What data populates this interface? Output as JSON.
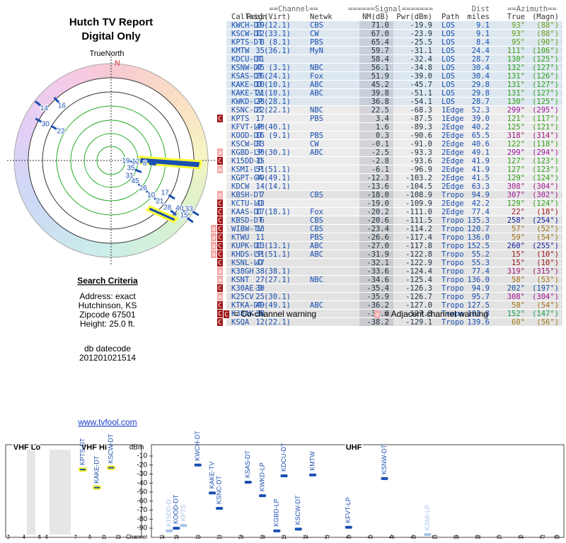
{
  "header": {
    "title": "Hutch TV Report",
    "subtitle": "Digital Only"
  },
  "polar": {
    "north_label": "TrueNorth",
    "north_mark": "N",
    "labels": [
      {
        "label": "14",
        "azimuth": 308
      },
      {
        "label": "16",
        "azimuth": 318
      },
      {
        "label": "30",
        "azimuth": 299
      },
      {
        "label": "22",
        "azimuth": 300
      },
      {
        "label": "19",
        "azimuth": 93
      },
      {
        "label": "12",
        "azimuth": 93
      },
      {
        "label": "8",
        "azimuth": 95
      },
      {
        "label": "35",
        "azimuth": 111
      },
      {
        "label": "31",
        "azimuth": 130
      },
      {
        "label": "45",
        "azimuth": 131
      },
      {
        "label": "26",
        "azimuth": 131
      },
      {
        "label": "10",
        "azimuth": 131
      },
      {
        "label": "21",
        "azimuth": 130
      },
      {
        "label": "17",
        "azimuth": 121
      },
      {
        "label": "28",
        "azimuth": 130
      },
      {
        "label": "40",
        "azimuth": 125
      },
      {
        "label": "33",
        "azimuth": 122
      },
      {
        "label": "15",
        "azimuth": 127
      }
    ]
  },
  "criteria": {
    "title": "Search Criteria",
    "lines": [
      "Address: exact",
      "Hutchinson, KS",
      "Zipcode 67501",
      "Height: 25.0 ft."
    ],
    "datecode_label": "db datecode",
    "datecode": "201201021514"
  },
  "link": "www.tvfool.com",
  "table": {
    "group_headers": [
      "==Channel==",
      "======Signal=======",
      "Dist",
      "==Azimuth=="
    ],
    "columns": [
      "Callsign",
      "Real",
      "(Virt)",
      "Netwk",
      "NM(dB)",
      "Pwr(dBm)",
      "Path",
      "miles",
      "True",
      "(Magn)"
    ],
    "rows": [
      {
        "cells": [
          "KWCH-DT",
          "19",
          "(12.1)",
          "CBS",
          "71.0",
          "-19.9",
          "LOS",
          "9.1",
          "93°",
          "(88°)"
        ]
      },
      {
        "cells": [
          "KSCW-DT",
          "12",
          "(33.1)",
          "CW",
          "67.0",
          "-23.9",
          "LOS",
          "9.1",
          "93°",
          "(88°)"
        ]
      },
      {
        "cells": [
          "KPTS-DT",
          "8",
          "(8.1)",
          "PBS",
          "65.4",
          "-25.5",
          "LOS",
          "8.4",
          "95°",
          "(90°)"
        ]
      },
      {
        "cells": [
          "KMTW",
          "35",
          "(36.1)",
          "MyN",
          "59.7",
          "-31.1",
          "LOS",
          "24.4",
          "111°",
          "(106°)"
        ]
      },
      {
        "cells": [
          "KDCU-DT",
          "31",
          null,
          null,
          "58.4",
          "-32.4",
          "LOS",
          "28.7",
          "130°",
          "(125°)"
        ]
      },
      {
        "cells": [
          "KSNW-DT",
          "45",
          "(3.1)",
          "NBC",
          "56.1",
          "-34.8",
          "LOS",
          "30.4",
          "132°",
          "(127°)"
        ]
      },
      {
        "cells": [
          "KSAS-DT",
          "26",
          "(24.1)",
          "Fox",
          "51.9",
          "-39.0",
          "LOS",
          "30.4",
          "131°",
          "(126°)"
        ]
      },
      {
        "cells": [
          "KAKE-DT",
          "10",
          "(10.1)",
          "ABC",
          "45.2",
          "-45.7",
          "LOS",
          "29.8",
          "131°",
          "(127°)"
        ]
      },
      {
        "cells": [
          "KAKE-TV",
          "21",
          "(10.1)",
          "ABC",
          "39.8",
          "-51.1",
          "LOS",
          "29.8",
          "131°",
          "(127°)"
        ]
      },
      {
        "cells": [
          "KWKD-LP",
          "28",
          "(28.1)",
          null,
          "36.8",
          "-54.1",
          "LOS",
          "28.7",
          "130°",
          "(125°)"
        ]
      },
      {
        "cells": [
          "KSNC-DT",
          "22",
          "(22.1)",
          "NBC",
          "22.5",
          "-68.3",
          "1Edge",
          "52.3",
          "299°",
          "(295°)"
        ]
      },
      {
        "warn": [
          "C"
        ],
        "cells": [
          "KPTS",
          "17",
          null,
          "PBS",
          "3.4",
          "-87.5",
          "1Edge",
          "39.0",
          "121°",
          "(117°)"
        ]
      },
      {
        "cells": [
          "KFVT-LP",
          "40",
          "(40.1)",
          null,
          "1.6",
          "-89.3",
          "2Edge",
          "40.2",
          "125°",
          "(121°)"
        ]
      },
      {
        "cells": [
          "KOOD-DT",
          "16",
          "(9.1)",
          "PBS",
          "0.3",
          "-90.6",
          "2Edge",
          "65.5",
          "318°",
          "(314°)"
        ]
      },
      {
        "cells": [
          "KSCW-DT",
          "33",
          null,
          "CW",
          "-0.1",
          "-91.0",
          "2Edge",
          "40.6",
          "122°",
          "(118°)"
        ]
      },
      {
        "warn": [
          "a"
        ],
        "cells": [
          "KGBD-LP",
          "30",
          "(30.1)",
          "ABC",
          "-2.5",
          "-93.3",
          "2Edge",
          "49.1",
          "299°",
          "(294°)"
        ]
      },
      {
        "warn": [
          "C"
        ],
        "cells": [
          "K15DD-D",
          "15",
          null,
          null,
          "-2.8",
          "-93.6",
          "2Edge",
          "41.9",
          "127°",
          "(123°)"
        ]
      },
      {
        "warn": [
          "a"
        ],
        "cells": [
          "KSMI-LP",
          "51",
          "(51.1)",
          null,
          "-6.1",
          "-96.9",
          "2Edge",
          "41.9",
          "127°",
          "(123°)"
        ]
      },
      {
        "cells": [
          "KGPT-CA",
          "49",
          "(49.1)",
          null,
          "-12.3",
          "-103.2",
          "2Edge",
          "41.5",
          "129°",
          "(124°)"
        ]
      },
      {
        "cells": [
          "KDCW",
          "14",
          "(14.1)",
          null,
          "-13.6",
          "-104.5",
          "2Edge",
          "63.3",
          "308°",
          "(304°)"
        ]
      },
      {
        "warn": [
          "a"
        ],
        "cells": [
          "KBSH-DT",
          "7",
          null,
          "CBS",
          "-18.0",
          "-108.9",
          "Tropo",
          "94.9",
          "307°",
          "(302°)"
        ]
      },
      {
        "warn": [
          "C"
        ],
        "cells": [
          "KCTU-LD",
          "43",
          null,
          null,
          "-19.0",
          "-109.9",
          "2Edge",
          "42.2",
          "129°",
          "(124°)"
        ]
      },
      {
        "warn": [
          "C"
        ],
        "cells": [
          "KAAS-DT",
          "17",
          "(18.1)",
          "Fox",
          "-20.2",
          "-111.0",
          "2Edge",
          "77.4",
          "22°",
          "(18°)"
        ]
      },
      {
        "warn": [
          "C"
        ],
        "cells": [
          "KBSD-DT",
          "6",
          null,
          "CBS",
          "-20.6",
          "-111.5",
          "Tropo",
          "135.3",
          "258°",
          "(254°)"
        ]
      },
      {
        "warn": [
          "a",
          "C"
        ],
        "cells": [
          "WIBW-TV",
          "13",
          null,
          "CBS",
          "-23.4",
          "-114.2",
          "Tropo",
          "120.7",
          "57°",
          "(52°)"
        ]
      },
      {
        "warn": [
          "a",
          "C"
        ],
        "cells": [
          "KTWU",
          "11",
          null,
          "PBS",
          "-26.6",
          "-117.4",
          "Tropo",
          "136.0",
          "59°",
          "(54°)"
        ]
      },
      {
        "warn": [
          "a",
          "C"
        ],
        "cells": [
          "KUPK-DT",
          "13",
          "(13.1)",
          "ABC",
          "-27.0",
          "-117.8",
          "Tropo",
          "152.5",
          "260°",
          "(255°)"
        ]
      },
      {
        "warn": [
          "a",
          "C"
        ],
        "cells": [
          "KHDS-LP",
          "51",
          "(51.1)",
          "ABC",
          "-31.9",
          "-122.8",
          "Tropo",
          "55.2",
          "15°",
          "(10°)"
        ]
      },
      {
        "warn": [
          "C"
        ],
        "cells": [
          "KSNL-LD",
          "47",
          null,
          null,
          "-32.1",
          "-122.9",
          "Tropo",
          "55.3",
          "15°",
          "(10°)"
        ]
      },
      {
        "warn": [
          "a"
        ],
        "cells": [
          "K38GH",
          "38",
          "(38.1)",
          null,
          "-33.6",
          "-124.4",
          "Tropo",
          "77.4",
          "319°",
          "(315°)"
        ]
      },
      {
        "warn": [
          "a"
        ],
        "cells": [
          "KSNT",
          "27",
          "(27.1)",
          "NBC",
          "-34.6",
          "-125.4",
          "Tropo",
          "136.0",
          "58°",
          "(53°)"
        ]
      },
      {
        "warn": [
          "C"
        ],
        "cells": [
          "K30AE-D",
          "30",
          null,
          null,
          "-35.4",
          "-126.3",
          "Tropo",
          "94.9",
          "202°",
          "(197°)"
        ]
      },
      {
        "warn": [
          "a"
        ],
        "cells": [
          "K25CV",
          "25",
          "(30.1)",
          null,
          "-35.9",
          "-126.7",
          "Tropo",
          "95.7",
          "308°",
          "(304°)"
        ]
      },
      {
        "warn": [
          "C"
        ],
        "cells": [
          "KTKA-DT",
          "49",
          "(49.1)",
          "ABC",
          "-36.2",
          "-127.0",
          "Tropo",
          "127.5",
          "58°",
          "(54°)"
        ]
      },
      {
        "warn": [
          "C"
        ],
        "cells": [
          "K38AK-D",
          "38",
          null,
          null,
          "-37.0",
          "-127.8",
          "Tropo",
          "103.8",
          "152°",
          "(147°)"
        ]
      },
      {
        "warn": [
          "C"
        ],
        "cells": [
          "KSQA",
          "12",
          "(22.1)",
          null,
          "-38.2",
          "-129.1",
          "Tropo",
          "139.6",
          "60°",
          "(56°)"
        ]
      }
    ]
  },
  "legend": [
    {
      "icon": "C",
      "text": "= Co-channel warning"
    },
    {
      "icon": "a",
      "text": "= Adjacent channel warning"
    }
  ],
  "spectrum": {
    "bands": [
      "VHF Lo",
      "VHF Hi",
      "UHF"
    ],
    "y_label": "dBm",
    "x_label": "Channel",
    "ylim": [
      -3,
      -97
    ],
    "yticks": [
      -10,
      -20,
      -30,
      -40,
      -50,
      -60,
      -70,
      -80,
      -90
    ],
    "vhf_ticks": [
      2,
      4,
      5,
      6,
      7,
      9,
      11,
      13
    ],
    "uhf_xlim": [
      14,
      69
    ],
    "uhf_ticks": [
      14,
      16,
      19,
      22,
      25,
      28,
      31,
      34,
      37,
      40,
      43,
      46,
      49,
      52,
      55,
      58,
      61,
      64,
      67,
      69
    ],
    "stations": [
      {
        "name": "KPTS-DT",
        "channel": 8,
        "dbm": -25,
        "active": true
      },
      {
        "name": "KAKE-DT",
        "channel": 10,
        "dbm": -45,
        "active": true
      },
      {
        "name": "KSCW-DT",
        "channel": 12,
        "dbm": -23,
        "active": true
      },
      {
        "name": "K15DD-D",
        "channel": 15,
        "dbm": -93,
        "active": false
      },
      {
        "name": "KOOD-DT",
        "channel": 16,
        "dbm": -90,
        "active": true
      },
      {
        "name": "KPTS",
        "channel": 17,
        "dbm": -87,
        "active": false
      },
      {
        "name": "KWCH-DT",
        "channel": 19,
        "dbm": -20,
        "active": true
      },
      {
        "name": "KAKE-TV",
        "channel": 21,
        "dbm": -51,
        "active": true
      },
      {
        "name": "KSNC-DT",
        "channel": 22,
        "dbm": -68,
        "active": true
      },
      {
        "name": "KSAS-DT",
        "channel": 26,
        "dbm": -39,
        "active": true
      },
      {
        "name": "KWKD-LP",
        "channel": 28,
        "dbm": -54,
        "active": true
      },
      {
        "name": "KGBD-LP",
        "channel": 30,
        "dbm": -93,
        "active": true
      },
      {
        "name": "KDCU-DT",
        "channel": 31,
        "dbm": -32,
        "active": true
      },
      {
        "name": "KSCW-DT",
        "channel": 33,
        "dbm": -91,
        "active": true
      },
      {
        "name": "KMTW",
        "channel": 35,
        "dbm": -31,
        "active": true
      },
      {
        "name": "KFVT-LP",
        "channel": 40,
        "dbm": -89,
        "active": true
      },
      {
        "name": "KSNW-DT",
        "channel": 45,
        "dbm": -35,
        "active": true
      },
      {
        "name": "KSMI-LP",
        "channel": 51,
        "dbm": -97,
        "active": false
      }
    ]
  }
}
